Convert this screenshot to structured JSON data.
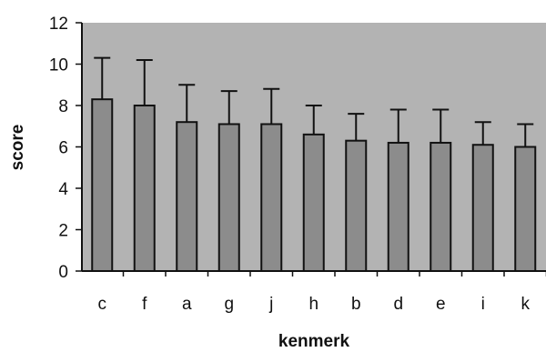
{
  "chart_data": {
    "type": "bar",
    "title": "",
    "xlabel": "kenmerk",
    "ylabel": "score",
    "ylim": [
      0,
      12
    ],
    "yticks": [
      0,
      2,
      4,
      6,
      8,
      10,
      12
    ],
    "grid": false,
    "legend": "none",
    "categories": [
      "c",
      "f",
      "a",
      "g",
      "j",
      "h",
      "b",
      "d",
      "e",
      "i",
      "k"
    ],
    "values": [
      8.3,
      8.0,
      7.2,
      7.1,
      7.1,
      6.6,
      6.3,
      6.2,
      6.2,
      6.1,
      6.0
    ],
    "error_upper": [
      2.0,
      2.2,
      1.8,
      1.6,
      1.7,
      1.4,
      1.3,
      1.6,
      1.6,
      1.1,
      1.1
    ],
    "colors": {
      "plot_background": "#b3b3b3",
      "bar_fill": "#8c8c8c",
      "bar_stroke": "#111111"
    }
  }
}
